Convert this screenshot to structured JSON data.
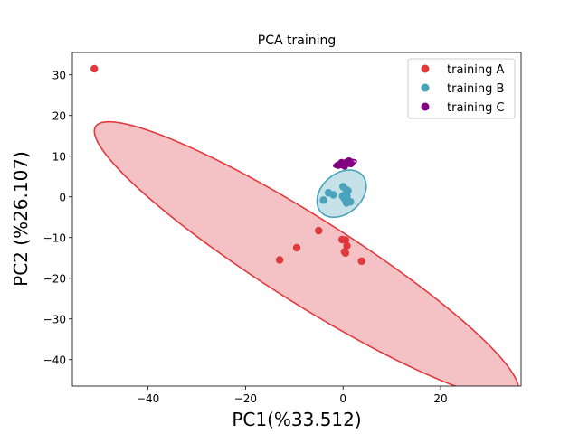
{
  "chart_data": {
    "type": "scatter",
    "title": "PCA training",
    "xlabel": "PC1(%33.512)",
    "ylabel": "PC2 (%26.107)",
    "xlim": [
      -55.5,
      36.5
    ],
    "ylim": [
      -46.5,
      35.5
    ],
    "xticks": [
      -40,
      -20,
      0,
      20
    ],
    "yticks": [
      -40,
      -30,
      -20,
      -10,
      0,
      10,
      20,
      30
    ],
    "legend_position": "top-right",
    "series": [
      {
        "name": "training A",
        "color": "#e0393e",
        "ellipse": {
          "center": [
            -7.5,
            -15.5
          ],
          "semi_major": 54.3,
          "semi_minor": 9.9,
          "angle_deg": -37.5,
          "fill": "#f4c2c4",
          "edge": "#e0393e"
        },
        "points": [
          [
            -51,
            31.5
          ],
          [
            -13,
            -15.5
          ],
          [
            -9.5,
            -12.5
          ],
          [
            -5,
            -8.3
          ],
          [
            -0.2,
            -10.5
          ],
          [
            0.5,
            -10.6
          ],
          [
            0.8,
            -12
          ],
          [
            0.3,
            -13.5
          ],
          [
            0.5,
            -13.8
          ],
          [
            3.8,
            -15.8
          ]
        ]
      },
      {
        "name": "training B",
        "color": "#4aa3ba",
        "ellipse": {
          "center": [
            -0.3,
            0.8
          ],
          "semi_major": 6.3,
          "semi_minor": 4.4,
          "angle_deg": 57,
          "fill": "#c6e1e8",
          "edge": "#4aa3ba"
        },
        "points": [
          [
            -4,
            -0.8
          ],
          [
            -3,
            1
          ],
          [
            -2,
            0.5
          ],
          [
            0,
            2.5
          ],
          [
            0.6,
            1.8
          ],
          [
            1,
            1.5
          ],
          [
            -0.1,
            0.2
          ],
          [
            0.5,
            0.3
          ],
          [
            0.8,
            0.2
          ],
          [
            0.3,
            -0.5
          ],
          [
            1.5,
            -1.2
          ],
          [
            0.7,
            -1.5
          ]
        ]
      },
      {
        "name": "training C",
        "color": "#800080",
        "ellipse": {
          "center": [
            0.4,
            8.2
          ],
          "semi_major": 2.4,
          "semi_minor": 0.8,
          "angle_deg": 15,
          "fill": "#d9bfd9",
          "edge": "#800080"
        },
        "points": [
          [
            -1,
            7.8
          ],
          [
            0,
            8
          ],
          [
            0.3,
            7.6
          ],
          [
            0.8,
            8.5
          ],
          [
            1.2,
            8.8
          ],
          [
            1.6,
            8.2
          ],
          [
            -0.3,
            8.4
          ]
        ]
      }
    ]
  }
}
